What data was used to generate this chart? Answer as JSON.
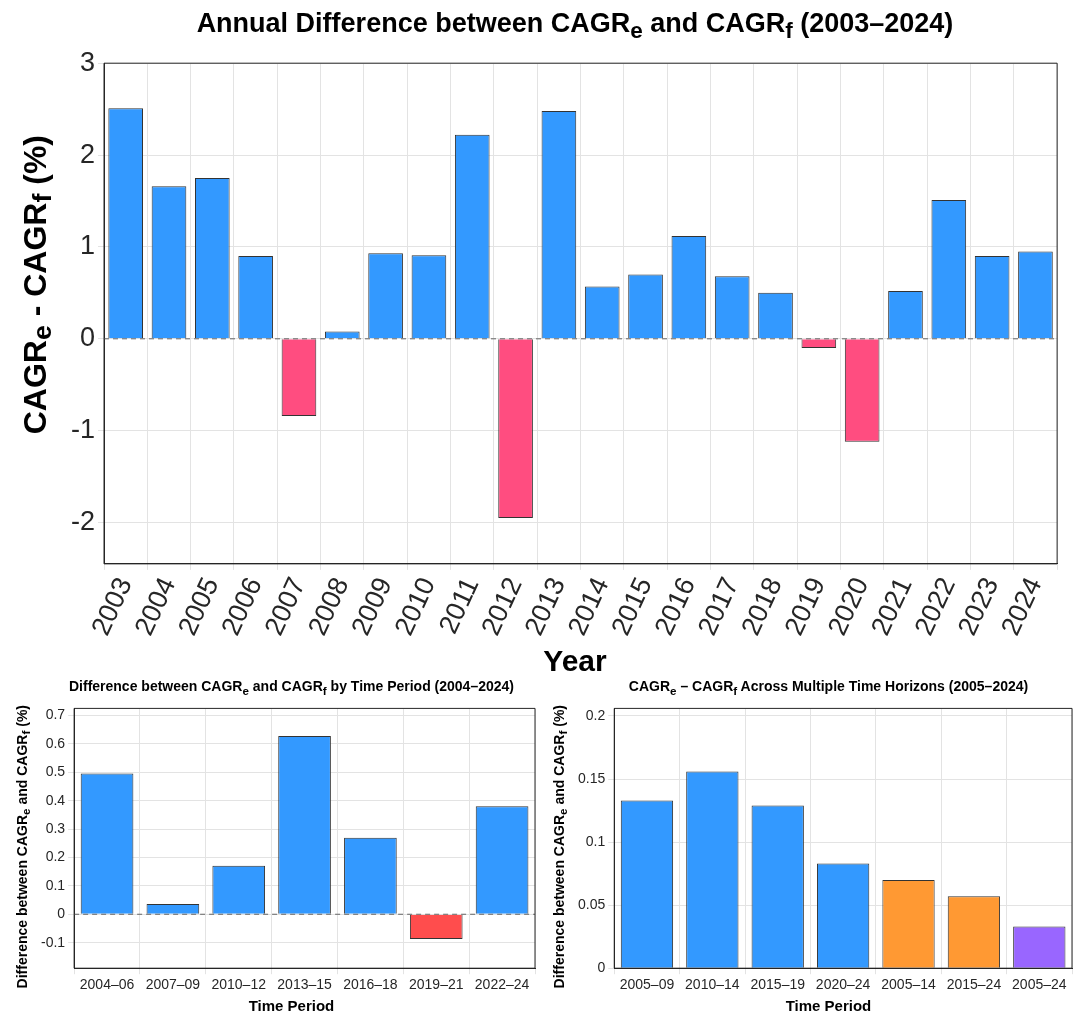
{
  "chart_data": [
    {
      "type": "bar",
      "title": "Annual Difference between CAGR$_{e}$ and CAGR$_{f}$ (2003–2024)",
      "xlabel": "Year",
      "ylabel": "CAGR$_{e}$ - CAGR$_{f}$ (%)",
      "categories": [
        "2003",
        "2004",
        "2005",
        "2006",
        "2007",
        "2008",
        "2009",
        "2010",
        "2011",
        "2012",
        "2013",
        "2014",
        "2015",
        "2016",
        "2017",
        "2018",
        "2019",
        "2020",
        "2021",
        "2022",
        "2023",
        "2024"
      ],
      "values": [
        2.51,
        1.66,
        1.75,
        0.9,
        -0.84,
        0.08,
        0.93,
        0.91,
        2.22,
        -1.95,
        2.48,
        0.57,
        0.7,
        1.12,
        0.68,
        0.5,
        -0.1,
        -1.12,
        0.52,
        1.51,
        0.9,
        0.95
      ],
      "colors": [
        "#3399ff",
        "#3399ff",
        "#3399ff",
        "#3399ff",
        "#ff4d80",
        "#3399ff",
        "#3399ff",
        "#3399ff",
        "#3399ff",
        "#ff4d80",
        "#3399ff",
        "#3399ff",
        "#3399ff",
        "#3399ff",
        "#3399ff",
        "#3399ff",
        "#ff4d80",
        "#ff4d80",
        "#3399ff",
        "#3399ff",
        "#3399ff",
        "#3399ff"
      ],
      "ylim": [
        -2.45,
        3
      ],
      "yticks": [
        -2,
        -1,
        0,
        1,
        2,
        3
      ],
      "grid": true,
      "ref_lines": [
        {
          "axis": "y",
          "value": 0,
          "color": "#666666",
          "line_style": "dashed"
        }
      ]
    },
    {
      "type": "bar",
      "title": "Difference between CAGR$_{e}$ and CAGR$_{f}$ by Time Period (2004–2024)",
      "xlabel": "Time Period",
      "ylabel": "Difference between CAGR$_{e}$ and CAGR$_{f}$ (%)",
      "categories": [
        "2004–06",
        "2007–09",
        "2010–12",
        "2013–15",
        "2016–18",
        "2019–21",
        "2022–24"
      ],
      "values": [
        0.496,
        0.036,
        0.171,
        0.628,
        0.269,
        -0.087,
        0.38
      ],
      "colors": [
        "#3399ff",
        "#3399ff",
        "#3399ff",
        "#3399ff",
        "#3399ff",
        "#ff4d4d",
        "#3399ff"
      ],
      "ylim": [
        -0.19,
        0.725
      ],
      "yticks": [
        -0.1,
        0,
        0.1,
        0.2,
        0.3,
        0.4,
        0.5,
        0.6,
        0.7
      ],
      "grid": true,
      "ref_lines": [
        {
          "axis": "y",
          "value": 0,
          "color": "#666666",
          "line_style": "dashed"
        }
      ]
    },
    {
      "type": "bar",
      "title": "CAGR$_{e}$ – CAGR$_{f}$ Across Multiple Time Horizons (2005–2024)",
      "xlabel": "Time Period",
      "ylabel": "Difference between CAGR$_{e}$ and CAGR$_{f}$ (%)",
      "categories": [
        "2005–09",
        "2010–14",
        "2015–19",
        "2020–24",
        "2005–14",
        "2015–24",
        "2005–24"
      ],
      "values": [
        0.133,
        0.156,
        0.129,
        0.083,
        0.07,
        0.057,
        0.033
      ],
      "colors": [
        "#3399ff",
        "#3399ff",
        "#3399ff",
        "#3399ff",
        "#ff9933",
        "#ff9933",
        "#9966ff"
      ],
      "ylim": [
        0,
        0.206
      ],
      "yticks": [
        0,
        0.05,
        0.1,
        0.15,
        0.2
      ],
      "grid": true
    }
  ]
}
